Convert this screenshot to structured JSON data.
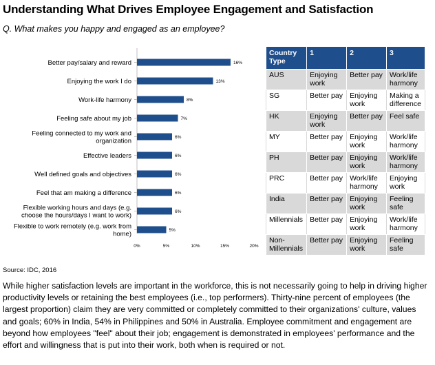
{
  "title": "Understanding What Drives Employee Engagement and Satisfaction",
  "question": "Q. What makes you happy and engaged as an employee?",
  "chart_data": {
    "type": "bar",
    "orientation": "horizontal",
    "categories": [
      "Better pay/salary and reward",
      "Enjoying the work I do",
      "Work-life harmony",
      "Feeling safe about my job",
      "Feeling connected to my work and organization",
      "Effective leaders",
      "Well defined goals and objectives",
      "Feel that am making a difference",
      "Flexible working hours and days (e.g. choose the hours/days I want to work)",
      "Flexible to work remotely (e.g. work from home)"
    ],
    "category_lines": [
      [
        "Better pay/salary and reward"
      ],
      [
        "Enjoying the work I do"
      ],
      [
        "Work-life harmony"
      ],
      [
        "Feeling safe about my job"
      ],
      [
        "Feeling connected to my work and",
        "organization"
      ],
      [
        "Effective leaders"
      ],
      [
        "Well defined goals and objectives"
      ],
      [
        "Feel that am making a difference"
      ],
      [
        "Flexible working hours and days (e.g.",
        "choose the hours/days I want to work)"
      ],
      [
        "Flexible to work remotely (e.g. work from",
        "home)"
      ]
    ],
    "values": [
      16,
      13,
      8,
      7,
      6,
      6,
      6,
      6,
      6,
      5
    ],
    "value_labels": [
      "16%",
      "13%",
      "8%",
      "7%",
      "6%",
      "6%",
      "6%",
      "6%",
      "6%",
      "5%"
    ],
    "xlim": [
      0,
      20
    ],
    "ticks": [
      "0%",
      "5%",
      "10%",
      "15%",
      "20%"
    ],
    "tick_values": [
      0,
      5,
      10,
      15,
      20
    ],
    "bar_color": "#1f4e8c"
  },
  "table": {
    "headers": [
      [
        "Country",
        "Type"
      ],
      [
        "1"
      ],
      [
        "2"
      ],
      [
        "3"
      ]
    ],
    "rows": [
      [
        [
          "AUS"
        ],
        [
          "Enjoying",
          "work"
        ],
        [
          "Better pay"
        ],
        [
          "Work/life",
          "harmony"
        ]
      ],
      [
        [
          "SG"
        ],
        [
          "Better pay"
        ],
        [
          "Enjoying",
          "work"
        ],
        [
          "Making a",
          "difference"
        ]
      ],
      [
        [
          "HK"
        ],
        [
          "Enjoying",
          "work"
        ],
        [
          "Better pay"
        ],
        [
          "Feel safe"
        ]
      ],
      [
        [
          "MY"
        ],
        [
          "Better pay"
        ],
        [
          "Enjoying",
          "work"
        ],
        [
          "Work/life",
          "harmony"
        ]
      ],
      [
        [
          "PH"
        ],
        [
          "Better pay"
        ],
        [
          "Enjoying",
          "work"
        ],
        [
          "Work/life",
          "harmony"
        ]
      ],
      [
        [
          "PRC"
        ],
        [
          "Better pay"
        ],
        [
          "Work/life",
          "harmony"
        ],
        [
          "Enjoying",
          "work"
        ]
      ],
      [
        [
          "India"
        ],
        [
          "Better pay"
        ],
        [
          "Enjoying",
          "work"
        ],
        [
          "Feeling",
          "safe"
        ]
      ],
      [
        [
          "Millennials"
        ],
        [
          "Better pay"
        ],
        [
          "Enjoying",
          "work"
        ],
        [
          "Work/life",
          "harmony"
        ]
      ],
      [
        [
          "Non-",
          "Millennials"
        ],
        [
          "Better pay"
        ],
        [
          "Enjoying",
          "work"
        ],
        [
          "Feeling",
          "safe"
        ]
      ]
    ]
  },
  "source": "Source: IDC, 2016",
  "paragraph": "While higher satisfaction levels are important in the workforce, this is not necessarily going to help in driving higher productivity levels or retaining the best employees (i.e., top performers).  Thirty-nine percent of employees (the largest proportion) claim they are very committed or completely committed to their organizations' culture, values and goals; 60% in India, 54% in Philippines and 50% in Australia. Employee commitment and engagement are beyond how employees \"feel\" about their job; engagement is demonstrated in employees' performance and the effort and willingness that is put into their work, both when is required or not."
}
